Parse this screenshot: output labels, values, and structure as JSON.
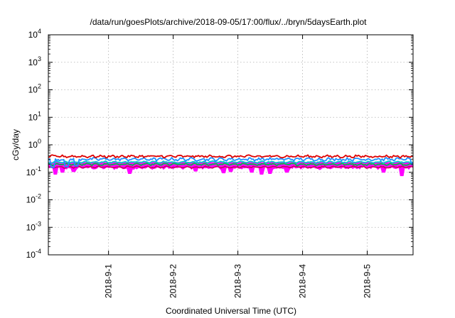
{
  "chart_data": {
    "type": "line",
    "title": "/data/run/goesPlots/archive/2018-09-05/17:00/flux/../bryn/5daysEarth.plot",
    "xlabel": "Coordinated Universal Time (UTC)",
    "ylabel": "cGy/day",
    "yscale": "log",
    "ylim": [
      0.0001,
      10000
    ],
    "xlim": [
      "2018-08-31T01:40",
      "2018-09-05T17:00"
    ],
    "grid": true,
    "y_ticks": [
      {
        "base": "10",
        "exp": "-4"
      },
      {
        "base": "10",
        "exp": "-3"
      },
      {
        "base": "10",
        "exp": "-2"
      },
      {
        "base": "10",
        "exp": "-1"
      },
      {
        "base": "10",
        "exp": "0"
      },
      {
        "base": "10",
        "exp": "1"
      },
      {
        "base": "10",
        "exp": "2"
      },
      {
        "base": "10",
        "exp": "3"
      },
      {
        "base": "10",
        "exp": "4"
      }
    ],
    "x_ticks": [
      "2018-9-1",
      "2018-9-2",
      "2018-9-3",
      "2018-9-4",
      "2018-9-5"
    ],
    "series": [
      {
        "color": "#ff00ff",
        "style": "filled",
        "base": 0.145,
        "noise": 0.1,
        "dips": [
          [
            "2018-08-31T04:30",
            0.085
          ],
          [
            "2018-08-31T07:00",
            0.1
          ],
          [
            "2018-08-31T11:00",
            0.105
          ],
          [
            "2018-09-01T08:00",
            0.09
          ],
          [
            "2018-09-02T08:30",
            0.11
          ],
          [
            "2018-09-02T18:30",
            0.095
          ],
          [
            "2018-09-02T21:30",
            0.105
          ],
          [
            "2018-09-03T05:00",
            0.1
          ],
          [
            "2018-09-03T09:00",
            0.085
          ],
          [
            "2018-09-03T12:00",
            0.09
          ],
          [
            "2018-09-03T18:00",
            0.1
          ],
          [
            "2018-09-05T06:00",
            0.1
          ],
          [
            "2018-09-05T13:00",
            0.075
          ]
        ]
      },
      {
        "color": "#cc0066",
        "style": "line",
        "base": 0.155,
        "noise": 0.05
      },
      {
        "color": "#00bb44",
        "style": "line",
        "base": 0.195,
        "noise": 0.05
      },
      {
        "color": "#00cccc",
        "style": "line",
        "base": 0.235,
        "noise": 0.05
      },
      {
        "color": "#1e90ff",
        "style": "line",
        "base": 0.3,
        "noise": 0.1,
        "dips": [
          [
            "2018-08-31T03:00",
            0.15
          ],
          [
            "2018-08-31T08:30",
            0.16
          ],
          [
            "2018-08-31T12:00",
            0.17
          ],
          [
            "2018-09-05T17:00",
            0.2
          ]
        ]
      },
      {
        "color": "#dd0000",
        "style": "line",
        "base": 0.38,
        "noise": 0.08
      }
    ]
  }
}
